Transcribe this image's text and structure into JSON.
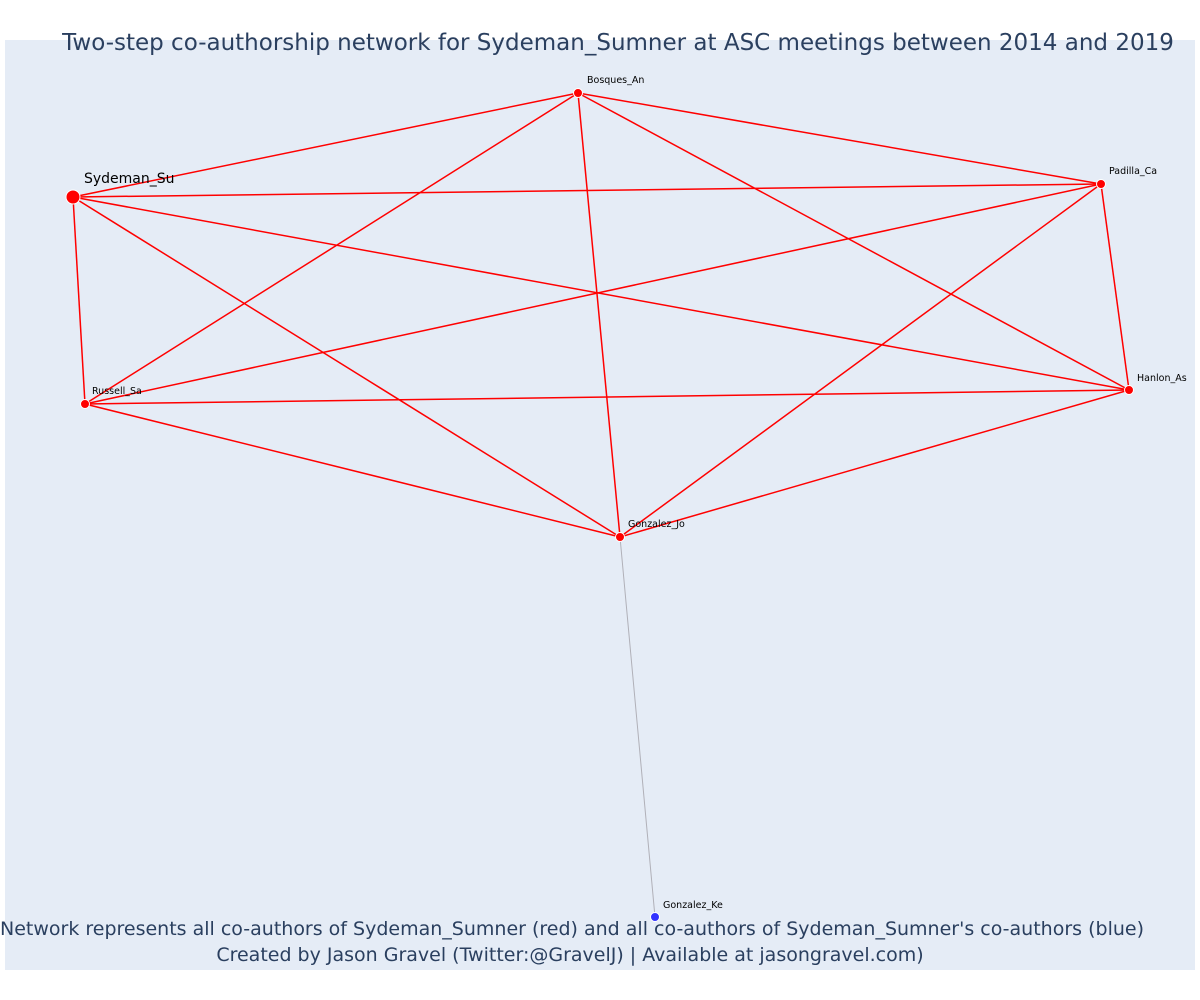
{
  "title": "Two-step co-authorship network for Sydeman_Sumner at ASC meetings between 2014 and 2019",
  "caption_line1": "Network represents all co-authors of Sydeman_Sumner (red) and all co-authors of Sydeman_Sumner's co-authors (blue)",
  "caption_line2": "Created by Jason Gravel (Twitter:@GravelJ) | Available at jasongravel.com)",
  "colors": {
    "first_step": "#ff0000",
    "second_step": "#3333ff",
    "second_step_edge": "#b0b0b8",
    "background": "#e5ecf6"
  },
  "nodes": [
    {
      "id": "Sydeman_Su",
      "label": "Sydeman_Su",
      "group": "focal"
    },
    {
      "id": "Bosques_An",
      "label": "Bosques_An",
      "group": "first"
    },
    {
      "id": "Padilla_Ca",
      "label": "Padilla_Ca",
      "group": "first"
    },
    {
      "id": "Russell_Sa",
      "label": "Russell_Sa",
      "group": "first"
    },
    {
      "id": "Hanlon_As",
      "label": "Hanlon_As",
      "group": "first"
    },
    {
      "id": "Gonzalez_Jo",
      "label": "Gonzalez_Jo",
      "group": "first"
    },
    {
      "id": "Gonzalez_Ke",
      "label": "Gonzalez_Ke",
      "group": "second"
    }
  ],
  "edges": [
    [
      "Sydeman_Su",
      "Bosques_An"
    ],
    [
      "Sydeman_Su",
      "Padilla_Ca"
    ],
    [
      "Sydeman_Su",
      "Russell_Sa"
    ],
    [
      "Sydeman_Su",
      "Hanlon_As"
    ],
    [
      "Sydeman_Su",
      "Gonzalez_Jo"
    ],
    [
      "Bosques_An",
      "Padilla_Ca"
    ],
    [
      "Bosques_An",
      "Russell_Sa"
    ],
    [
      "Bosques_An",
      "Hanlon_As"
    ],
    [
      "Bosques_An",
      "Gonzalez_Jo"
    ],
    [
      "Padilla_Ca",
      "Russell_Sa"
    ],
    [
      "Padilla_Ca",
      "Hanlon_As"
    ],
    [
      "Padilla_Ca",
      "Gonzalez_Jo"
    ],
    [
      "Russell_Sa",
      "Hanlon_As"
    ],
    [
      "Russell_Sa",
      "Gonzalez_Jo"
    ],
    [
      "Hanlon_As",
      "Gonzalez_Jo"
    ],
    [
      "Gonzalez_Jo",
      "Gonzalez_Ke"
    ]
  ]
}
